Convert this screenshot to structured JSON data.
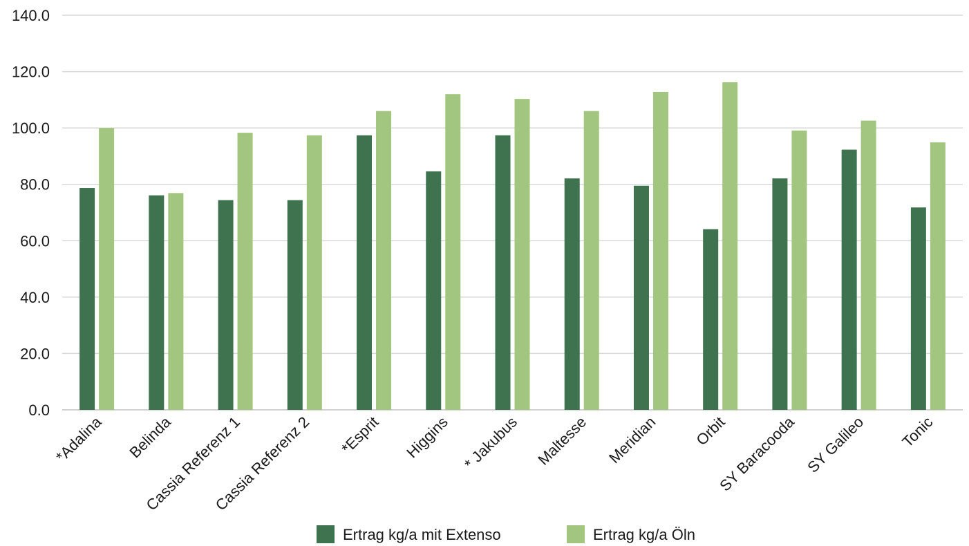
{
  "chart_data": {
    "type": "bar",
    "categories": [
      "*Adalina",
      "Belinda",
      "Cassia Referenz 1",
      "Cassia Referenz 2",
      "*Esprit",
      "Higgins",
      "* Jakubus",
      "Maltesse",
      "Meridian",
      "Orbit",
      "SY Baracooda",
      "SY Galileo",
      "Tonic"
    ],
    "series": [
      {
        "name": "Ertrag kg/a mit Extenso",
        "color": "#3f724e",
        "values": [
          78.7,
          76.1,
          74.4,
          74.4,
          97.4,
          84.6,
          97.4,
          82.1,
          79.5,
          64.1,
          82.1,
          92.3,
          71.8
        ]
      },
      {
        "name": "Ertrag kg/a Öln",
        "color": "#a2c67f",
        "values": [
          100.0,
          76.9,
          98.3,
          97.4,
          106.0,
          112.0,
          110.3,
          106.0,
          112.8,
          116.2,
          99.1,
          102.6,
          94.9
        ]
      }
    ],
    "yticks": [
      "0.0",
      "20.0",
      "40.0",
      "60.0",
      "80.0",
      "100.0",
      "120.0",
      "140.0"
    ],
    "ylim": [
      0,
      140
    ],
    "grid": true,
    "legend_position": "bottom",
    "gridline_color": "#d9d9d9"
  }
}
